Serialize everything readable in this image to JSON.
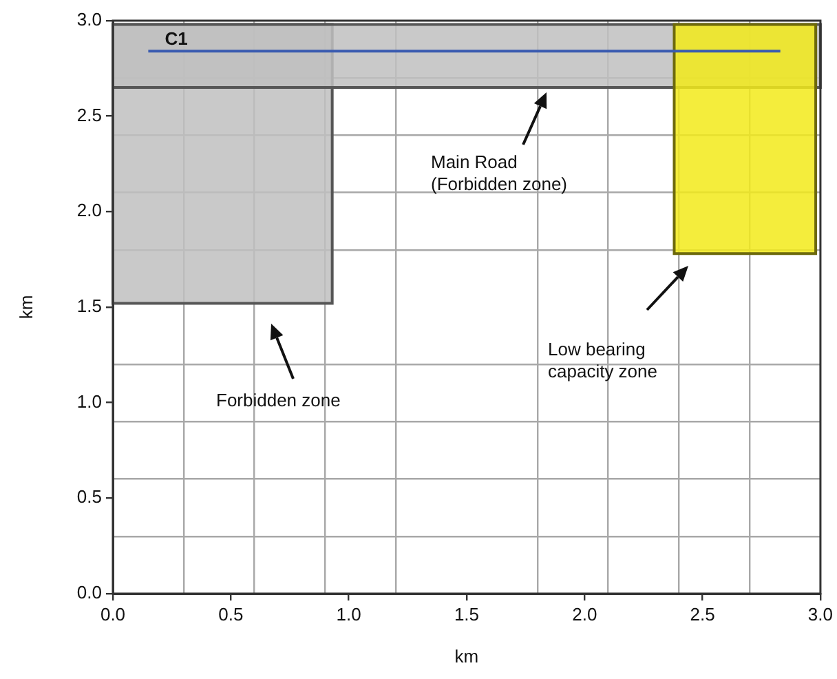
{
  "chart_data": {
    "type": "line",
    "xlabel": "km",
    "ylabel": "km",
    "xlim": [
      0,
      3.0
    ],
    "ylim": [
      0,
      3.0
    ],
    "xticks": [
      {
        "value": 0,
        "label": "0.0"
      },
      {
        "value": 0.3,
        "label": null
      },
      0.5,
      {
        "value": 0.6,
        "label": null
      },
      {
        "value": 0.9,
        "label": null
      },
      {
        "value": 1,
        "label": "1.0"
      },
      {
        "value": 1.2,
        "label": null
      },
      1.5,
      {
        "value": 1.8,
        "label": null
      },
      {
        "value": 2,
        "label": "2.0"
      },
      {
        "value": 2.1,
        "label": null
      },
      {
        "value": 2.4,
        "label": null
      },
      2.5,
      {
        "value": 2.7,
        "label": null
      },
      {
        "value": 3,
        "label": "3.0"
      }
    ],
    "yticks": [
      {
        "value": 0,
        "label": "0.0"
      },
      {
        "value": 0.3,
        "label": null
      },
      0.5,
      {
        "value": 0.6,
        "label": null
      },
      {
        "value": 0.9,
        "label": null
      },
      {
        "value": 1,
        "label": "1.0"
      },
      {
        "value": 1.2,
        "label": null
      },
      1.5,
      {
        "value": 1.8,
        "label": null
      },
      {
        "value": 2,
        "label": "2.0"
      },
      {
        "value": 2.1,
        "label": null
      },
      {
        "value": 2.4,
        "label": null
      },
      2.5,
      {
        "value": 2.7,
        "label": null
      },
      {
        "value": 3,
        "label": "3.0"
      }
    ],
    "grid": true,
    "legend": false,
    "marker": "none",
    "line_style": "solid",
    "series": [
      {
        "type": "area",
        "color": "#c0c0c0",
        "x": [
          0,
          0.93,
          0.93,
          0
        ],
        "values": [
          2.98,
          2.98,
          1.52,
          1.52
        ]
      },
      {
        "type": "area",
        "color": "#c0c0c0",
        "x": [
          0,
          3.0,
          3.0,
          0
        ],
        "values": [
          2.98,
          2.98,
          2.65,
          2.65
        ]
      },
      {
        "type": "area",
        "color": "#f2ea1a",
        "x": [
          2.38,
          2.98,
          2.98,
          2.38
        ],
        "values": [
          2.98,
          2.98,
          1.78,
          1.78
        ]
      },
      {
        "name": "C1",
        "color": "#3a5bb0",
        "x": [
          0.15,
          2.83
        ],
        "values": [
          2.84,
          2.84
        ]
      }
    ],
    "annotations": [
      "Main Road\n(Forbidden zone)",
      "Forbidden zone",
      "Low bearing\ncapacity zone"
    ]
  }
}
